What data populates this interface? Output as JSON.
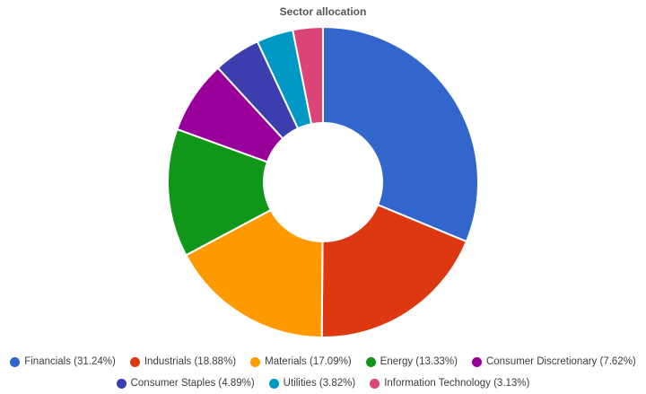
{
  "chart_data": {
    "type": "pie",
    "title": "Sector allocation",
    "donut": true,
    "legend_position": "bottom",
    "slices": [
      {
        "label": "Financials",
        "value": 31.24,
        "legend_text": "Financials (31.24%)",
        "color": "#3366cc"
      },
      {
        "label": "Industrials",
        "value": 18.88,
        "legend_text": "Industrials (18.88%)",
        "color": "#dc3912"
      },
      {
        "label": "Materials",
        "value": 17.09,
        "legend_text": "Materials (17.09%)",
        "color": "#ff9900"
      },
      {
        "label": "Energy",
        "value": 13.33,
        "legend_text": "Energy (13.33%)",
        "color": "#109618"
      },
      {
        "label": "Consumer Discretionary",
        "value": 7.62,
        "legend_text": "Consumer Discretionary (7.62%)",
        "color": "#990099"
      },
      {
        "label": "Consumer Staples",
        "value": 4.89,
        "legend_text": "Consumer Staples (4.89%)",
        "color": "#3b3eac"
      },
      {
        "label": "Utilities",
        "value": 3.82,
        "legend_text": "Utilities (3.82%)",
        "color": "#0099c6"
      },
      {
        "label": "Information Technology",
        "value": 3.13,
        "legend_text": "Information Technology (3.13%)",
        "color": "#dd4477"
      }
    ]
  }
}
